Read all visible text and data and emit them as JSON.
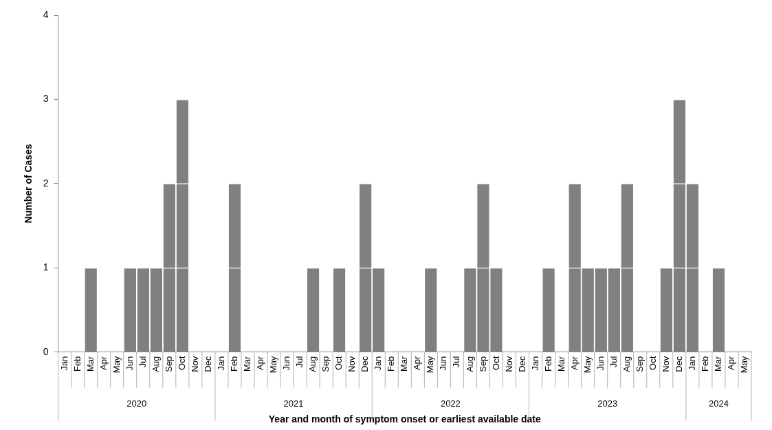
{
  "chart_data": {
    "type": "bar",
    "xlabel": "Year and month of symptom onset or earliest available date",
    "ylabel": "Number of Cases",
    "categories": [
      "Jan",
      "Feb",
      "Mar",
      "Apr",
      "May",
      "Jun",
      "Jul",
      "Aug",
      "Sep",
      "Oct",
      "Nov",
      "Dec",
      "Jan",
      "Feb",
      "Mar",
      "Apr",
      "May",
      "Jun",
      "Jul",
      "Aug",
      "Sep",
      "Oct",
      "Nov",
      "Dec",
      "Jan",
      "Feb",
      "Mar",
      "Apr",
      "May",
      "Jun",
      "Jul",
      "Aug",
      "Sep",
      "Oct",
      "Nov",
      "Dec",
      "Jan",
      "Feb",
      "Mar",
      "Apr",
      "May",
      "Jun",
      "Jul",
      "Aug",
      "Sep",
      "Oct",
      "Nov",
      "Dec",
      "Jan",
      "Feb",
      "Mar",
      "Apr",
      "May"
    ],
    "annotations": [
      "2020",
      "2021",
      "2022",
      "2023",
      "2024"
    ],
    "stacked": true,
    "series": [
      {
        "color": "#808080",
        "values": [
          0,
          0,
          1,
          0,
          0,
          1,
          1,
          1,
          1,
          1,
          0,
          0,
          0,
          1,
          0,
          0,
          0,
          0,
          0,
          1,
          0,
          1,
          0,
          1,
          1,
          0,
          0,
          0,
          1,
          0,
          0,
          1,
          1,
          1,
          0,
          0,
          0,
          1,
          0,
          1,
          1,
          1,
          1,
          1,
          0,
          0,
          1,
          1,
          1,
          0,
          1,
          0,
          0
        ]
      },
      {
        "color": "#808080",
        "values": [
          0,
          0,
          0,
          0,
          0,
          0,
          0,
          0,
          1,
          1,
          0,
          0,
          0,
          1,
          0,
          0,
          0,
          0,
          0,
          0,
          0,
          0,
          0,
          1,
          0,
          0,
          0,
          0,
          0,
          0,
          0,
          0,
          1,
          0,
          0,
          0,
          0,
          0,
          0,
          1,
          0,
          0,
          0,
          1,
          0,
          0,
          0,
          1,
          1,
          0,
          0,
          0,
          0
        ]
      },
      {
        "color": "#808080",
        "values": [
          0,
          0,
          0,
          0,
          0,
          0,
          0,
          0,
          0,
          1,
          0,
          0,
          0,
          0,
          0,
          0,
          0,
          0,
          0,
          0,
          0,
          0,
          0,
          0,
          0,
          0,
          0,
          0,
          0,
          0,
          0,
          0,
          0,
          0,
          0,
          0,
          0,
          0,
          0,
          0,
          0,
          0,
          0,
          0,
          0,
          0,
          0,
          1,
          0,
          0,
          0,
          0,
          0
        ]
      }
    ],
    "ylim": [
      0,
      4
    ],
    "yticks": [
      0,
      1,
      2,
      3,
      4
    ],
    "grid": false,
    "legend": false
  }
}
